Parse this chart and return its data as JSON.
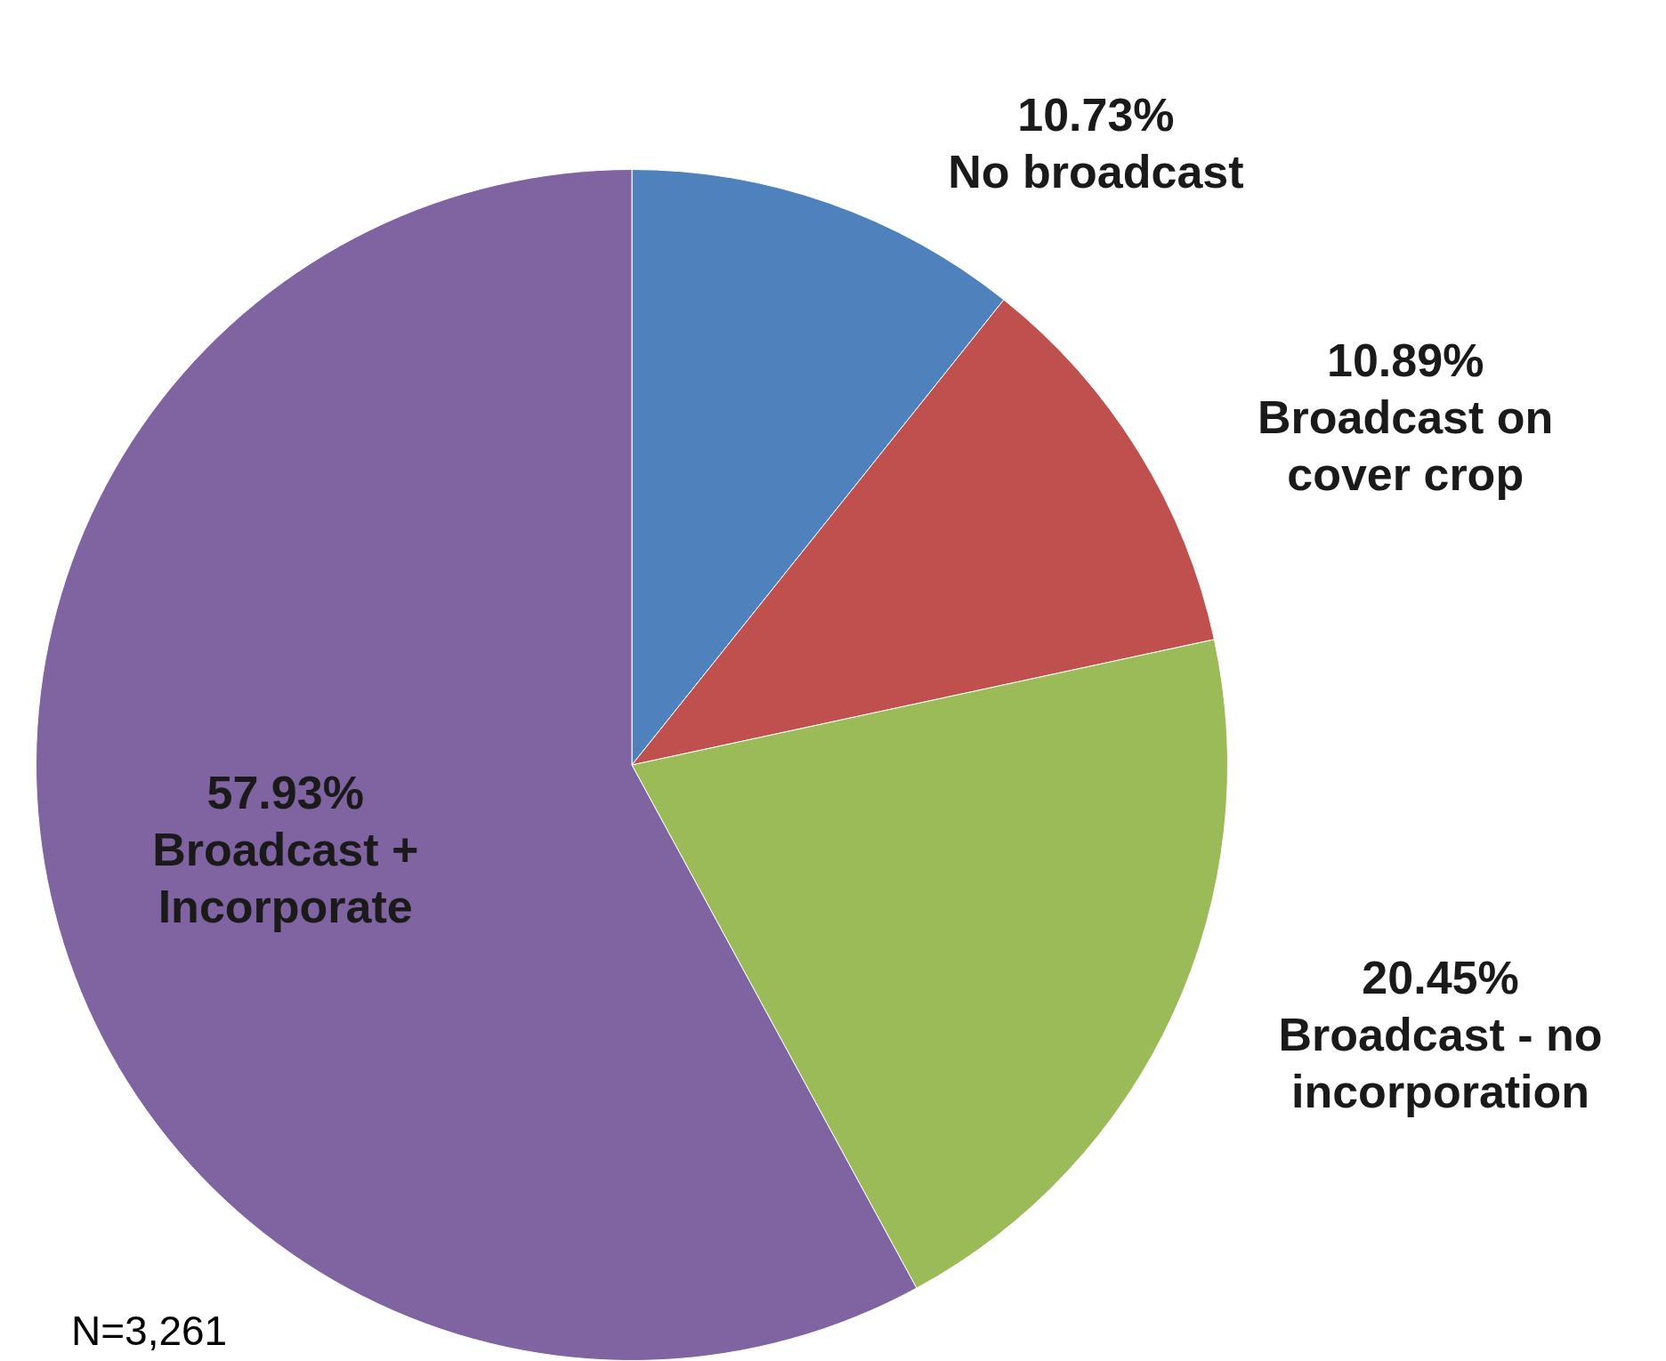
{
  "chart_data": {
    "type": "pie",
    "categories": [
      "No broadcast",
      "Broadcast on cover crop",
      "Broadcast - no incorporation",
      "Broadcast + Incorporate"
    ],
    "values": [
      10.73,
      10.89,
      20.45,
      57.93
    ],
    "colors": [
      "#4f81bd",
      "#c0504d",
      "#9bbb59",
      "#8064a2"
    ],
    "value_labels": [
      "10.73%",
      "10.89%",
      "20.45%",
      "57.93%"
    ],
    "annotations": [
      "N=3,261"
    ]
  }
}
